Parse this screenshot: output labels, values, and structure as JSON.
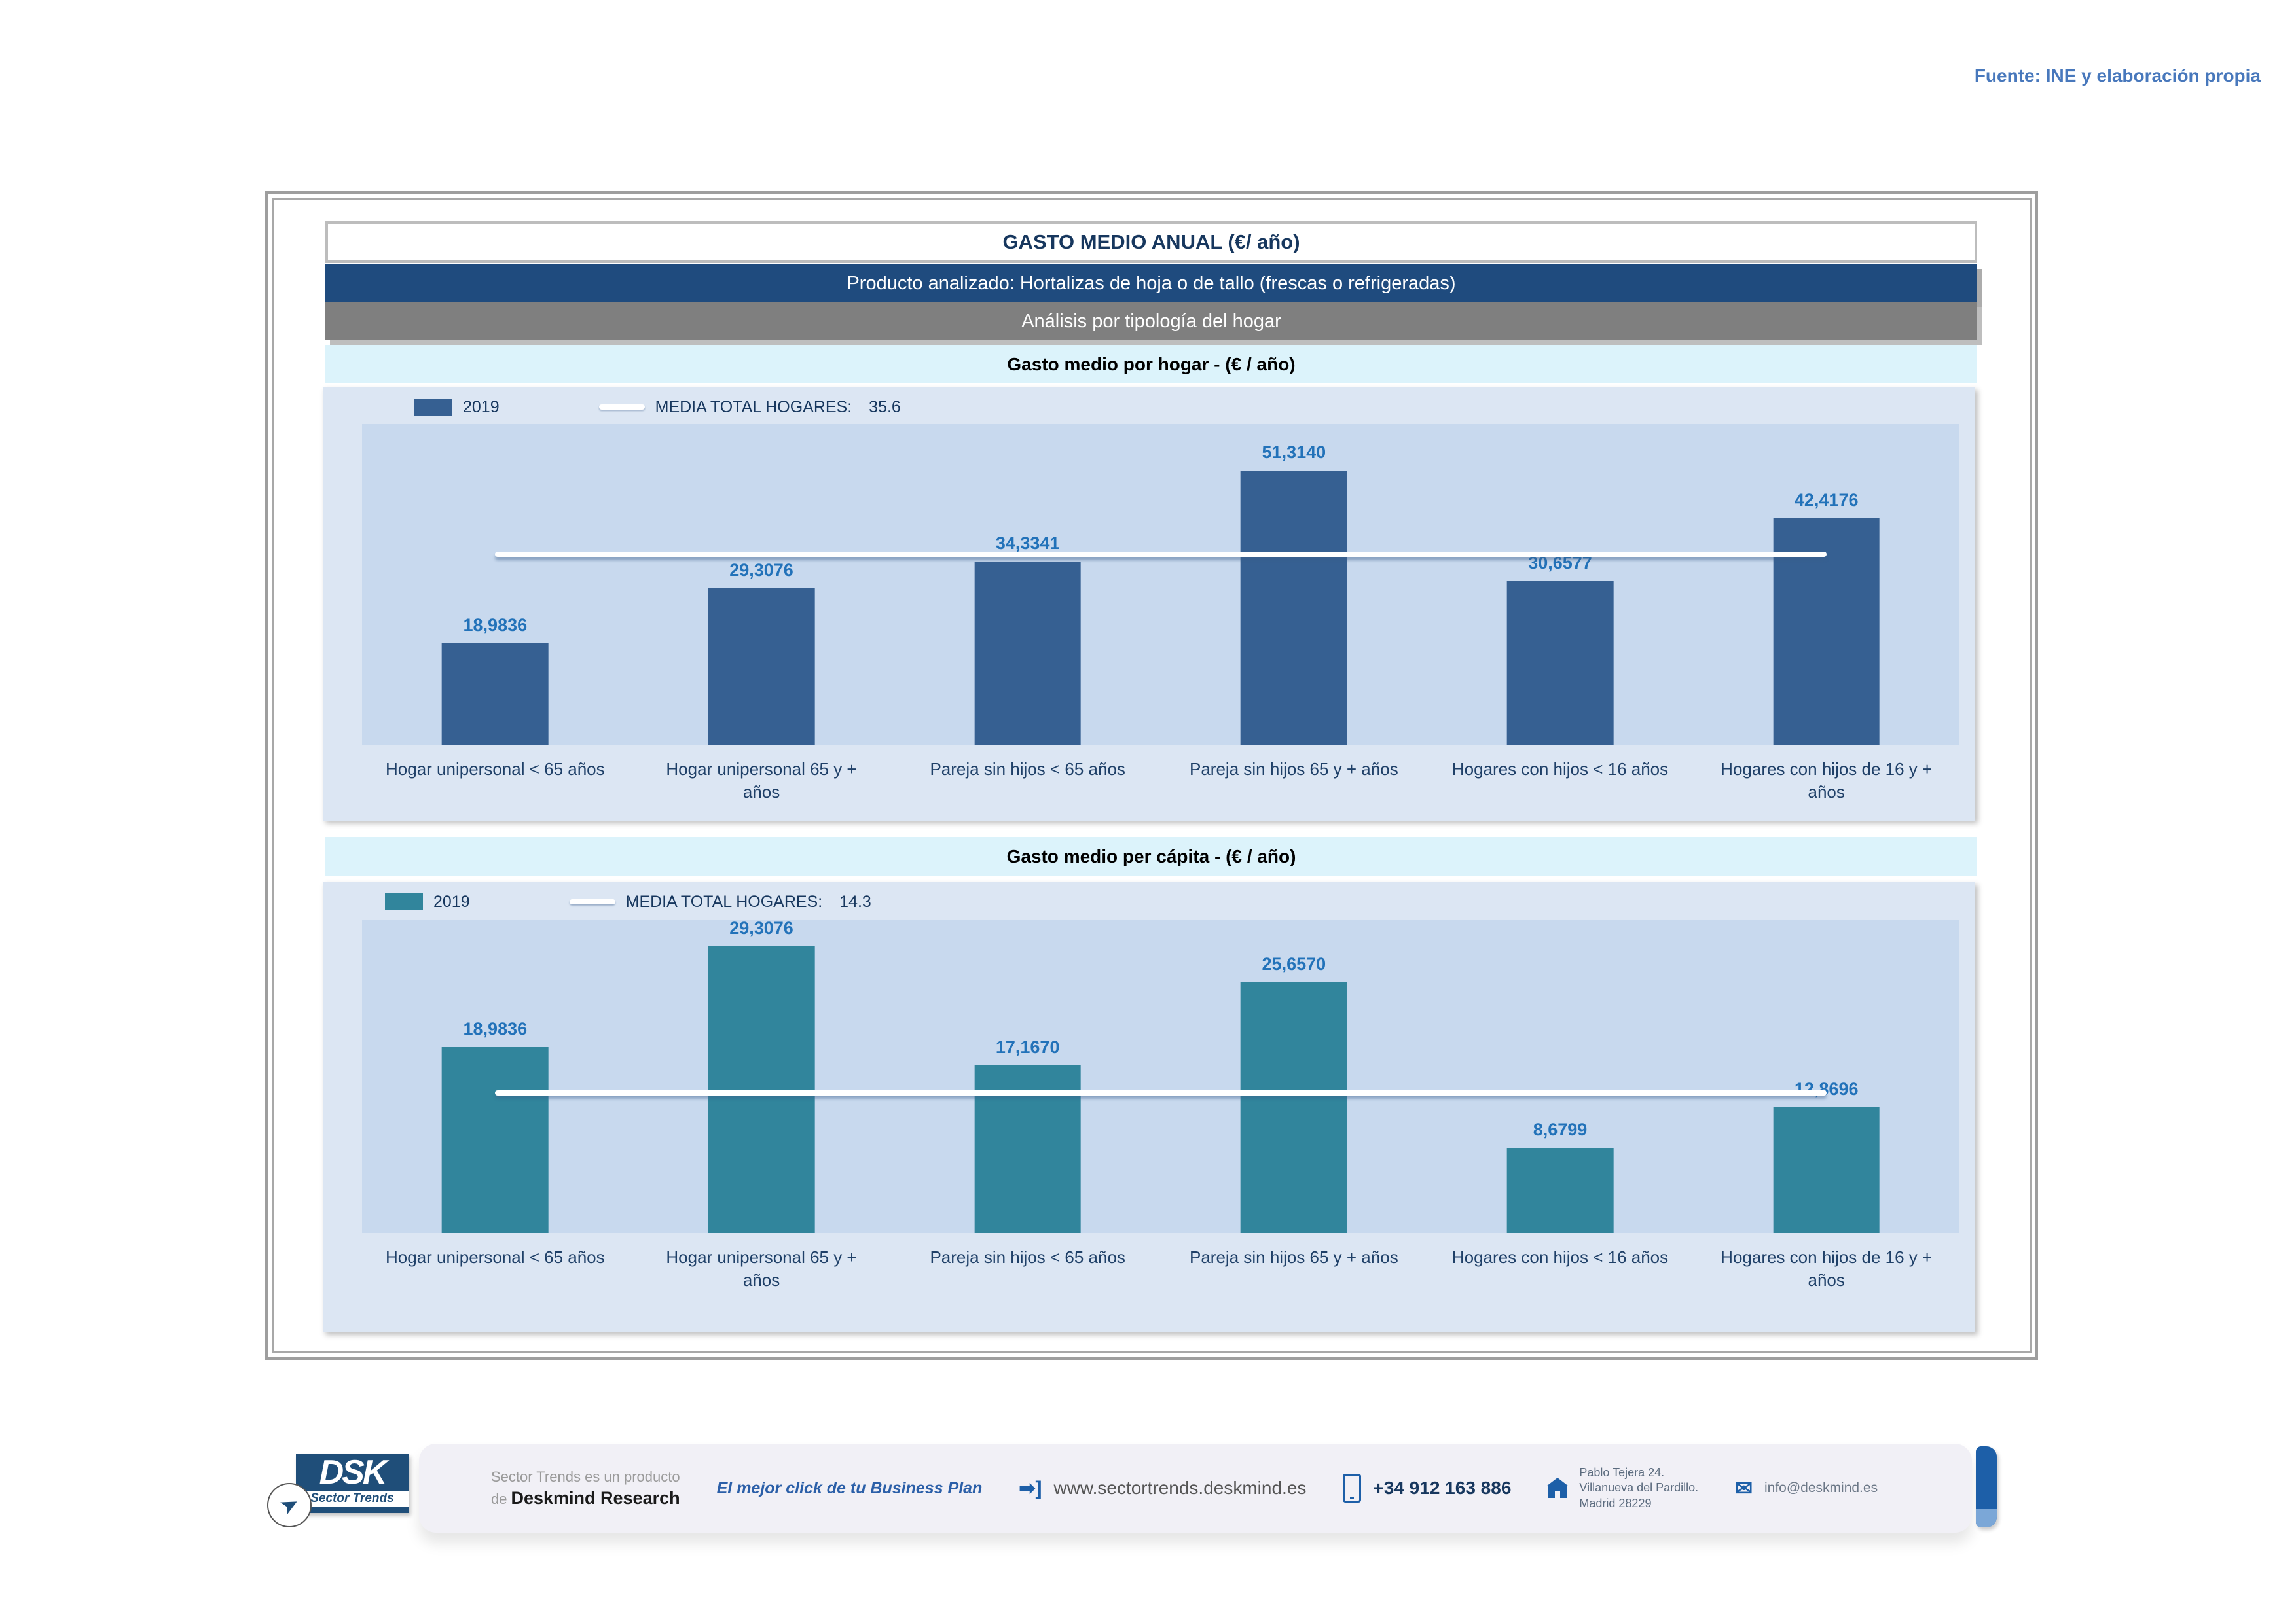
{
  "source_note": "Fuente: INE y elaboración propia",
  "header": {
    "title": "GASTO MEDIO ANUAL (€/ año)",
    "product_band": "Producto analizado: Hortalizas de hoja o de tallo (frescas o refrigeradas)",
    "analysis_band": "Análisis por tipología del hogar"
  },
  "chart_data": [
    {
      "type": "bar",
      "title": "Gasto medio por hogar -  (€ / año)",
      "series_name": "2019",
      "categories": [
        "Hogar unipersonal < 65 años",
        "Hogar unipersonal  65 y +\naños",
        "Pareja sin hijos < 65 años",
        "Pareja sin hijos 65 y + años",
        "Hogares con hijos < 16 años",
        "Hogares con hijos de 16 y +\naños"
      ],
      "values": [
        18.9836,
        29.3076,
        34.3341,
        51.314,
        30.6577,
        42.4176
      ],
      "value_labels": [
        "18,9836",
        "29,3076",
        "34,3341",
        "51,3140",
        "30,6577",
        "42,4176"
      ],
      "media_label": "MEDIA TOTAL  HOGARES:",
      "media_value_label": "35.6",
      "media_total_hogares": 35.6,
      "ylim": [
        0,
        60
      ],
      "grid": false,
      "legend_position": "top-left",
      "bar_color": "#366092",
      "media_line_color": "#FFFFFF"
    },
    {
      "type": "bar",
      "title": "Gasto medio per cápita -  (€ / año)",
      "series_name": "2019",
      "categories": [
        "Hogar unipersonal < 65 años",
        "Hogar unipersonal  65 y +\naños",
        "Pareja sin hijos < 65 años",
        "Pareja sin hijos 65 y + años",
        "Hogares con hijos < 16 años",
        "Hogares con hijos de 16 y +\naños"
      ],
      "values": [
        18.9836,
        29.3076,
        17.167,
        25.657,
        8.6799,
        12.8696
      ],
      "value_labels": [
        "18,9836",
        "29,3076",
        "17,1670",
        "25,6570",
        "8,6799",
        "12,8696"
      ],
      "media_label": "MEDIA TOTAL  HOGARES:",
      "media_value_label": "14.3",
      "media_total_hogares": 14.3,
      "ylim": [
        0,
        32
      ],
      "grid": false,
      "legend_position": "top-left",
      "bar_color": "#31859C",
      "media_line_color": "#FFFFFF"
    }
  ],
  "footer": {
    "logo": {
      "acronym": "DSK",
      "tagline": "Sector Trends",
      "plane_icon": "paper-plane"
    },
    "product_line_1": "Sector Trends es un producto",
    "product_line_2_prefix": "de",
    "product_line_2_brand": "Deskmind Research",
    "slogan": "El mejor click de tu Business Plan",
    "website": "www.sectortrends.deskmind.es",
    "phone": "+34 912 163 886",
    "address_lines": [
      "Pablo Tejera 24.",
      "Villanueva del Pardillo.",
      "Madrid 28229"
    ],
    "email": "info@deskmind.es"
  },
  "colors": {
    "band_blue": "#1F4B7E",
    "band_gray": "#7F7F7F",
    "band_cyan": "#DCF3FB",
    "panel_bg": "#DCE6F3",
    "plot_bg": "#C8D9EE",
    "bar_chart1": "#366092",
    "bar_chart2": "#31859C",
    "value_label": "#2272B9",
    "source_note": "#4878BC",
    "footer_accent": "#1D5FA8"
  }
}
